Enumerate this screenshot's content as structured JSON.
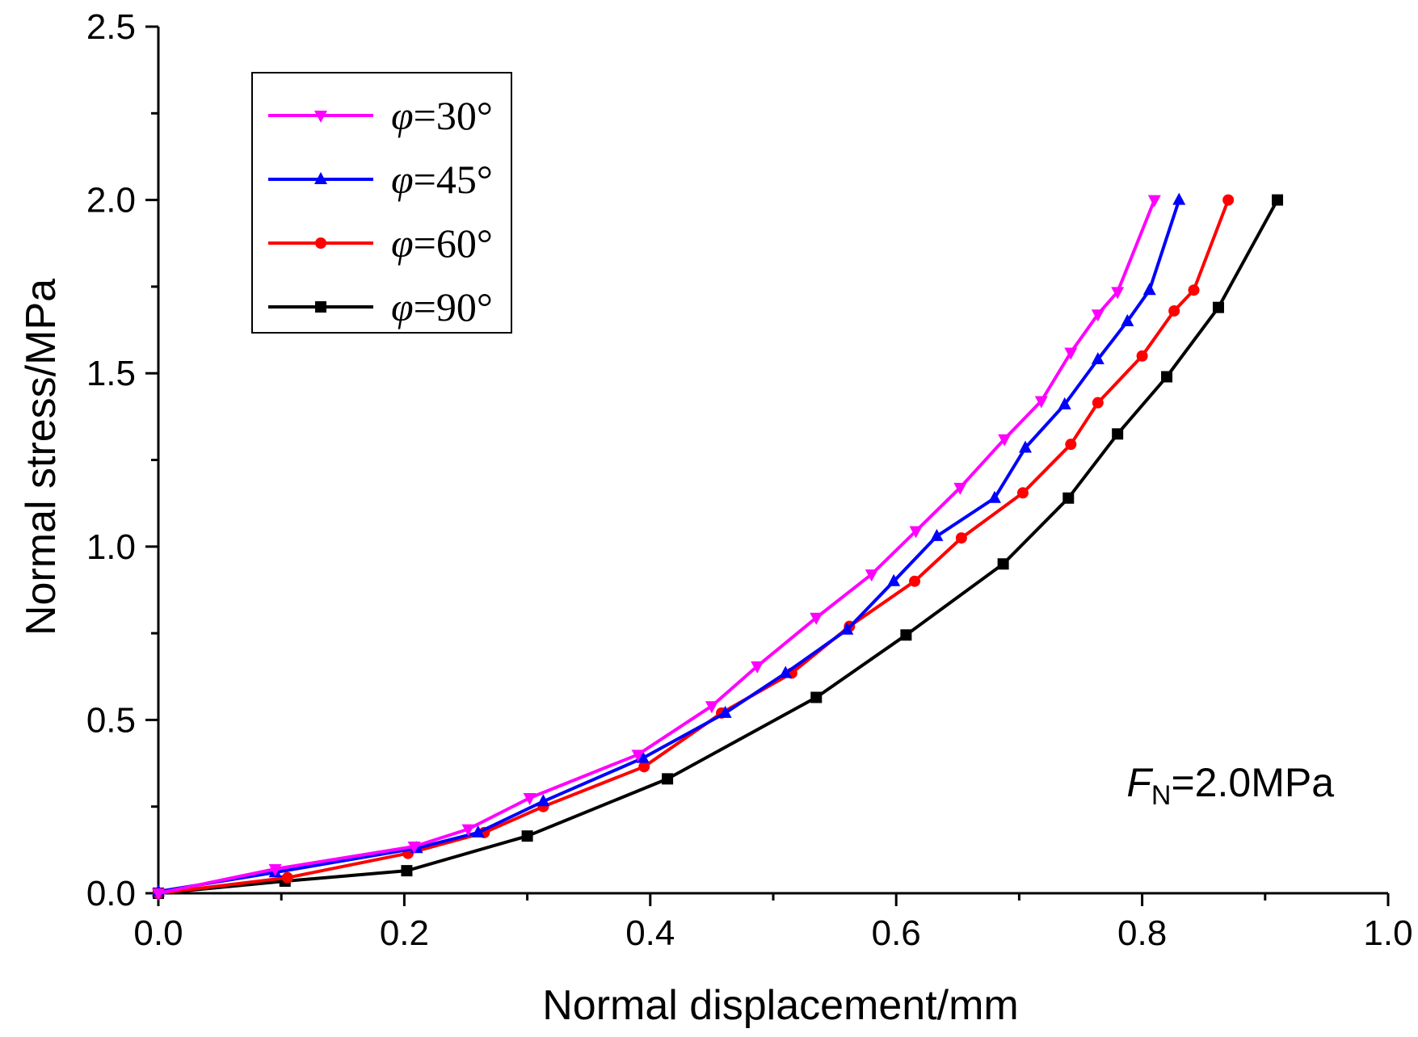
{
  "chart_data": {
    "type": "line",
    "xlabel": "Normal displacement/mm",
    "ylabel": "Normal stress/MPa",
    "xlim": [
      0.0,
      1.0
    ],
    "ylim": [
      0.0,
      2.5
    ],
    "xticks": [
      "0.0",
      "0.2",
      "0.4",
      "0.6",
      "0.8",
      "1.0"
    ],
    "yticks": [
      "0.0",
      "0.5",
      "1.0",
      "1.5",
      "2.0",
      "2.5"
    ],
    "legend_position": "top-left",
    "annotation": {
      "main": "F",
      "sub": "N",
      "rest": "=2.0MPa"
    },
    "series": [
      {
        "name": "φ=30°",
        "symbol": "φ",
        "label": "=30°",
        "color": "#ff00ff",
        "marker": "triangle-down",
        "x": [
          0.0,
          0.095,
          0.208,
          0.252,
          0.302,
          0.39,
          0.45,
          0.487,
          0.535,
          0.58,
          0.616,
          0.652,
          0.688,
          0.718,
          0.742,
          0.764,
          0.78,
          0.81
        ],
        "y": [
          0.0,
          0.07,
          0.135,
          0.185,
          0.275,
          0.4,
          0.54,
          0.655,
          0.795,
          0.92,
          1.045,
          1.17,
          1.31,
          1.42,
          1.56,
          1.67,
          1.735,
          2.0
        ]
      },
      {
        "name": "φ=45°",
        "symbol": "φ",
        "label": "=45°",
        "color": "#0000ff",
        "marker": "triangle-up",
        "x": [
          0.0,
          0.095,
          0.21,
          0.26,
          0.313,
          0.394,
          0.461,
          0.51,
          0.56,
          0.598,
          0.633,
          0.68,
          0.705,
          0.737,
          0.764,
          0.788,
          0.806,
          0.83
        ],
        "y": [
          0.005,
          0.06,
          0.13,
          0.175,
          0.265,
          0.39,
          0.52,
          0.635,
          0.76,
          0.9,
          1.03,
          1.14,
          1.285,
          1.41,
          1.54,
          1.65,
          1.74,
          2.0
        ]
      },
      {
        "name": "φ=60°",
        "symbol": "φ",
        "label": "=60°",
        "color": "#ff0000",
        "marker": "circle",
        "x": [
          0.0,
          0.105,
          0.203,
          0.265,
          0.313,
          0.395,
          0.458,
          0.515,
          0.562,
          0.615,
          0.653,
          0.703,
          0.742,
          0.764,
          0.8,
          0.826,
          0.842,
          0.87
        ],
        "y": [
          0.0,
          0.045,
          0.115,
          0.175,
          0.25,
          0.365,
          0.52,
          0.635,
          0.77,
          0.9,
          1.025,
          1.155,
          1.295,
          1.415,
          1.55,
          1.68,
          1.74,
          2.0
        ]
      },
      {
        "name": "φ=90°",
        "symbol": "φ",
        "label": "=90°",
        "color": "#000000",
        "marker": "square",
        "x": [
          0.0,
          0.103,
          0.202,
          0.3,
          0.414,
          0.535,
          0.608,
          0.687,
          0.74,
          0.78,
          0.82,
          0.862,
          0.91
        ],
        "y": [
          0.0,
          0.035,
          0.065,
          0.165,
          0.33,
          0.565,
          0.745,
          0.95,
          1.14,
          1.325,
          1.49,
          1.69,
          2.0
        ]
      }
    ]
  }
}
